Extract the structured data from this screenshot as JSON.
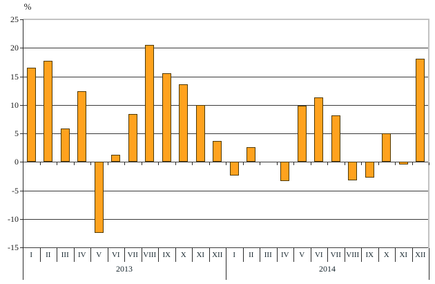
{
  "chart_data": {
    "type": "bar",
    "title": "",
    "ylabel": "%",
    "xlabel": "",
    "ylim": [
      -15,
      25
    ],
    "ytick_step": 5,
    "yticks": [
      25,
      20,
      15,
      10,
      5,
      0,
      -5,
      -10,
      -15
    ],
    "grid": true,
    "legend": "none",
    "bar_fill_color": "#FFA21E",
    "bar_border_color": "#4e3906",
    "plot_border_color": "#c2c2c2",
    "groups": [
      {
        "year": "2013",
        "months": [
          "I",
          "II",
          "III",
          "IV",
          "V",
          "VI",
          "VII",
          "VIII",
          "IX",
          "X",
          "XI",
          "XII"
        ],
        "values": [
          16.5,
          17.7,
          5.9,
          12.4,
          -12.4,
          1.2,
          8.4,
          20.5,
          15.5,
          13.6,
          10.0,
          3.7
        ]
      },
      {
        "year": "2014",
        "months": [
          "I",
          "II",
          "III",
          "IV",
          "V",
          "VI",
          "VII",
          "VIII",
          "IX",
          "X",
          "XI",
          "XII"
        ],
        "values": [
          -2.4,
          2.6,
          0,
          -3.4,
          9.9,
          11.3,
          8.2,
          -3.3,
          -2.8,
          5.0,
          -0.5,
          18.1
        ]
      }
    ]
  }
}
